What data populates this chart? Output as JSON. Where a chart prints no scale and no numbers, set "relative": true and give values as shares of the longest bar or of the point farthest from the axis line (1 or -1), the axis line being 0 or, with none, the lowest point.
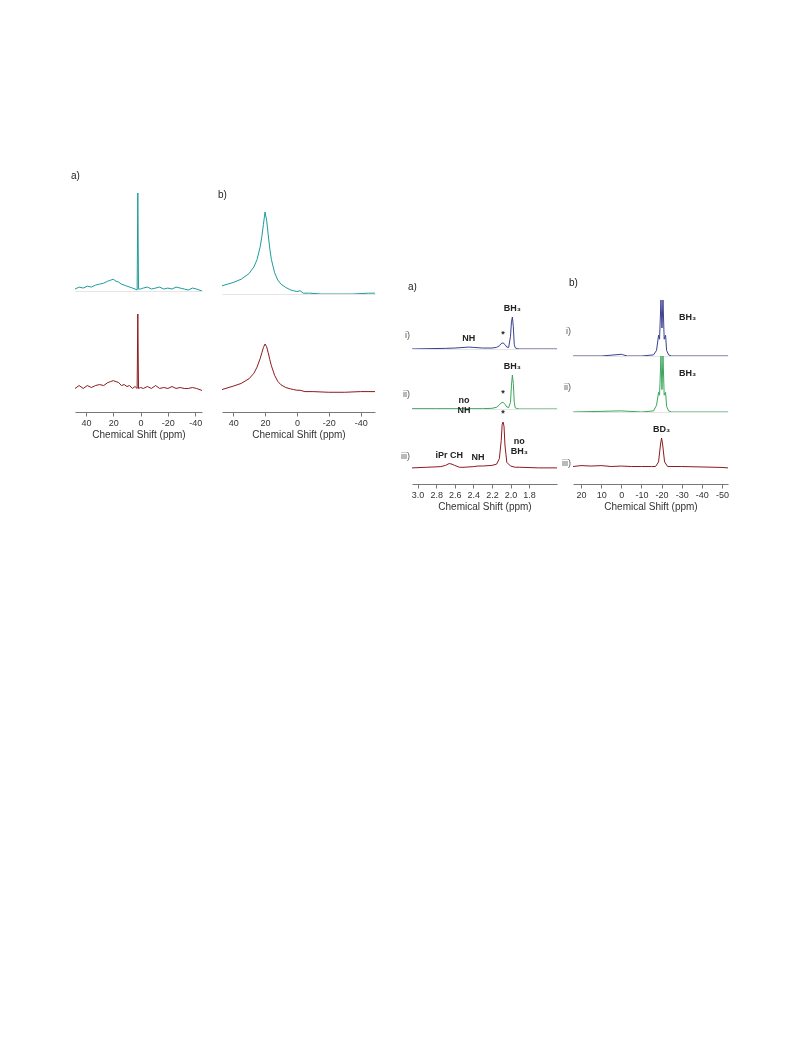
{
  "chart_data": [
    {
      "type": "line",
      "title": "a)",
      "relative": true,
      "xlim": [
        48,
        -45
      ],
      "tick_labels": false,
      "series": [
        {
          "color": "#1e9c9c",
          "x": [
            48,
            45,
            42,
            39,
            36,
            33,
            30,
            27,
            24,
            22,
            20,
            18,
            16,
            14,
            12,
            10,
            8,
            6,
            4,
            2.5,
            2,
            1.5,
            0,
            -2,
            -5,
            -8,
            -11,
            -14,
            -17,
            -20,
            -23,
            -26,
            -29,
            -32,
            -35,
            -38,
            -41,
            -45
          ],
          "values": [
            0.02,
            0.04,
            0.03,
            0.05,
            0.04,
            0.06,
            0.07,
            0.08,
            0.1,
            0.11,
            0.12,
            0.1,
            0.09,
            0.07,
            0.06,
            0.05,
            0.04,
            0.03,
            0.02,
            0.01,
            1,
            0.02,
            0.02,
            0.03,
            0.04,
            0.02,
            0.03,
            0.04,
            0.02,
            0.03,
            0.02,
            0.04,
            0.03,
            0.02,
            0.01,
            0.03,
            0.02,
            0
          ]
        }
      ]
    },
    {
      "type": "line",
      "relative": true,
      "xlim": [
        48,
        -45
      ],
      "tick_labels": "x",
      "xlabel": "Chemical Shift (ppm)",
      "xticks": [
        40,
        20,
        0,
        -20,
        -40
      ],
      "series": [
        {
          "color": "#8c1a1f",
          "x": [
            48,
            45,
            42,
            39,
            36,
            33,
            30,
            27,
            24,
            22,
            20,
            18,
            16,
            14,
            12,
            10,
            8,
            6,
            4,
            2.5,
            2,
            1.5,
            0,
            -2,
            -5,
            -8,
            -11,
            -14,
            -17,
            -20,
            -23,
            -26,
            -29,
            -32,
            -35,
            -38,
            -41,
            -45
          ],
          "values": [
            0.24,
            0.27,
            0.24,
            0.27,
            0.25,
            0.27,
            0.28,
            0.27,
            0.3,
            0.31,
            0.32,
            0.31,
            0.3,
            0.27,
            0.28,
            0.26,
            0.27,
            0.24,
            0.26,
            0.24,
            1,
            0.24,
            0.25,
            0.24,
            0.26,
            0.24,
            0.27,
            0.24,
            0.25,
            0.24,
            0.26,
            0.24,
            0.25,
            0.24,
            0.24,
            0.25,
            0.24,
            0.22
          ]
        }
      ]
    },
    {
      "type": "line",
      "title": "b)",
      "relative": true,
      "xlim": [
        47,
        -49
      ],
      "tick_labels": false,
      "series": [
        {
          "color": "#1e9c9c",
          "x": [
            47,
            40,
            35,
            30,
            27,
            25,
            23,
            22,
            21,
            20,
            19,
            18,
            17,
            16,
            14,
            12,
            10,
            7,
            4,
            2,
            0,
            -2,
            -4,
            -8,
            -15,
            -25,
            -35,
            -45,
            -49
          ],
          "values": [
            0.1,
            0.14,
            0.18,
            0.25,
            0.33,
            0.42,
            0.58,
            0.7,
            0.85,
            1,
            0.9,
            0.72,
            0.55,
            0.42,
            0.26,
            0.17,
            0.12,
            0.08,
            0.05,
            0.04,
            0.03,
            0.04,
            0.01,
            0.01,
            0,
            0,
            0,
            0.01,
            0.01
          ]
        }
      ]
    },
    {
      "type": "line",
      "relative": true,
      "xlim": [
        47,
        -49
      ],
      "tick_labels": "x",
      "xlabel": "Chemical Shift (ppm)",
      "xticks": [
        40,
        20,
        0,
        -20,
        -40
      ],
      "series": [
        {
          "color": "#8c1a1f",
          "x": [
            47,
            40,
            35,
            30,
            27,
            25,
            23,
            22,
            21,
            20,
            19,
            18,
            17,
            16,
            14,
            12,
            10,
            7,
            4,
            2,
            0,
            -2,
            -5,
            -10,
            -20,
            -30,
            -40,
            -49
          ],
          "values": [
            0.33,
            0.38,
            0.42,
            0.49,
            0.57,
            0.66,
            0.79,
            0.87,
            0.95,
            1,
            0.96,
            0.87,
            0.77,
            0.68,
            0.54,
            0.45,
            0.4,
            0.36,
            0.34,
            0.33,
            0.32,
            0.32,
            0.3,
            0.3,
            0.29,
            0.29,
            0.3,
            0.3
          ]
        }
      ]
    },
    {
      "type": "line",
      "title": "a)",
      "relative": true,
      "xlim": [
        3.06,
        1.5
      ],
      "tick_labels": false,
      "annotations": [
        "i)",
        {
          "text": "NH",
          "x": 2.45,
          "y": 0.06
        },
        {
          "text": "*",
          "x": 2.08,
          "y": 0.19
        },
        {
          "text": "BH₃",
          "x": 1.98,
          "y": 1
        }
      ],
      "series": [
        {
          "color": "#3b3f8f",
          "x": [
            3.06,
            2.9,
            2.7,
            2.6,
            2.5,
            2.45,
            2.4,
            2.3,
            2.2,
            2.15,
            2.12,
            2.1,
            2.08,
            2.06,
            2.04,
            2.02,
            2.0,
            1.99,
            1.98,
            1.97,
            1.96,
            1.95,
            1.93,
            1.9,
            1.8,
            1.7,
            1.5
          ],
          "values": [
            0,
            0.01,
            0.02,
            0.03,
            0.05,
            0.06,
            0.05,
            0.03,
            0.03,
            0.05,
            0.1,
            0.17,
            0.19,
            0.14,
            0.06,
            0.05,
            0.4,
            0.85,
            1,
            0.7,
            0.15,
            0.04,
            0.01,
            0,
            0,
            0,
            0
          ]
        }
      ]
    },
    {
      "type": "line",
      "relative": true,
      "xlim": [
        3.06,
        1.5
      ],
      "tick_labels": false,
      "annotations": [
        "ii)",
        {
          "text": "no\nNH",
          "x": 2.5,
          "y": 0.01
        },
        {
          "text": "*",
          "x": 2.08,
          "y": 0.2
        },
        {
          "text": "BH₃",
          "x": 1.98,
          "y": 1
        }
      ],
      "series": [
        {
          "color": "#3ba55a",
          "x": [
            3.06,
            2.8,
            2.5,
            2.3,
            2.2,
            2.15,
            2.12,
            2.1,
            2.08,
            2.06,
            2.04,
            2.02,
            2.0,
            1.99,
            1.98,
            1.97,
            1.96,
            1.95,
            1.93,
            1.9,
            1.7,
            1.5
          ],
          "values": [
            0.01,
            0.01,
            0.01,
            0.01,
            0.02,
            0.05,
            0.12,
            0.18,
            0.2,
            0.14,
            0.06,
            0.04,
            0.2,
            0.7,
            1,
            0.75,
            0.2,
            0.04,
            0.01,
            0,
            0,
            0
          ]
        }
      ]
    },
    {
      "type": "line",
      "relative": true,
      "xlim": [
        3.06,
        1.5
      ],
      "tick_labels": "x",
      "xlabel": "Chemical Shift (ppm)",
      "xticks": [
        {
          "value": 3,
          "label": "3.0"
        },
        2.8,
        2.6,
        2.4,
        2.2,
        {
          "value": 2,
          "label": "2.0"
        },
        1.8
      ],
      "annotations": [
        "iii)",
        {
          "text": "iPr CH",
          "x": 2.66,
          "y": 0.33
        },
        {
          "text": "NH",
          "x": 2.35,
          "y": 0.29
        },
        {
          "text": "*",
          "x": 2.08,
          "y": 1
        },
        "no\nBH₃"
      ],
      "series": [
        {
          "color": "#8c1a1f",
          "x": [
            3.06,
            2.9,
            2.75,
            2.7,
            2.66,
            2.63,
            2.6,
            2.55,
            2.5,
            2.4,
            2.35,
            2.3,
            2.2,
            2.15,
            2.12,
            2.1,
            2.09,
            2.08,
            2.07,
            2.06,
            2.04,
            2.0,
            1.95,
            1.9,
            1.7,
            1.5
          ],
          "values": [
            0.26,
            0.27,
            0.28,
            0.3,
            0.33,
            0.32,
            0.3,
            0.27,
            0.27,
            0.28,
            0.29,
            0.29,
            0.3,
            0.32,
            0.41,
            0.7,
            0.96,
            1,
            0.93,
            0.63,
            0.35,
            0.29,
            0.27,
            0.27,
            0.26,
            0.26
          ]
        }
      ]
    },
    {
      "type": "line",
      "title": "b)",
      "relative": true,
      "xlim": [
        24,
        -53
      ],
      "tick_labels": false,
      "annotations": [
        "i)",
        "BH₃"
      ],
      "series": [
        {
          "color": "#3b3f8f",
          "x": [
            24,
            10,
            0,
            -1,
            -3,
            -10,
            -16,
            -17.5,
            -18.5,
            -19,
            -19.7,
            -20.2,
            -20.7,
            -21.3,
            -22,
            -22.5,
            -23.5,
            -25,
            -30,
            -40,
            -53
          ],
          "values": [
            0,
            0,
            0.03,
            0.02,
            0,
            0,
            0.02,
            0.1,
            0.37,
            0.3,
            1,
            0.5,
            1,
            0.3,
            0.37,
            0.1,
            0.02,
            0,
            0,
            0,
            0
          ]
        }
      ]
    },
    {
      "type": "line",
      "relative": true,
      "xlim": [
        24,
        -53
      ],
      "tick_labels": false,
      "annotations": [
        "ii)",
        "BH₃"
      ],
      "series": [
        {
          "color": "#3ba55a",
          "x": [
            24,
            0,
            -10,
            -16,
            -17.5,
            -18.5,
            -19,
            -19.7,
            -20.2,
            -20.7,
            -21.3,
            -22,
            -22.5,
            -23.5,
            -25,
            -53
          ],
          "values": [
            0,
            0.02,
            0,
            0.02,
            0.12,
            0.35,
            0.3,
            1,
            0.4,
            1,
            0.3,
            0.35,
            0.1,
            0.02,
            0,
            0
          ]
        }
      ]
    },
    {
      "type": "line",
      "relative": true,
      "xlim": [
        24,
        -53
      ],
      "tick_labels": "x",
      "xlabel": "Chemical Shift (ppm)",
      "xticks": [
        20,
        10,
        0,
        -10,
        -20,
        -30,
        -40,
        -50
      ],
      "annotations": [
        "iii)",
        {
          "text": "BD₃",
          "x": -20,
          "y": 1
        }
      ],
      "series": [
        {
          "color": "#8c1a1f",
          "x": [
            24,
            20,
            15,
            10,
            5,
            0,
            -5,
            -10,
            -15,
            -17,
            -18.5,
            -19.5,
            -20,
            -20.5,
            -21.5,
            -23,
            -30,
            -40,
            -50,
            -53
          ],
          "values": [
            0.38,
            0.4,
            0.39,
            0.4,
            0.38,
            0.39,
            0.38,
            0.38,
            0.38,
            0.38,
            0.48,
            0.87,
            1,
            0.87,
            0.48,
            0.38,
            0.38,
            0.37,
            0.36,
            0.35
          ]
        }
      ]
    }
  ]
}
